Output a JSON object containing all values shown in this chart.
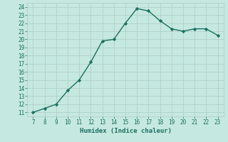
{
  "x": [
    7,
    8,
    9,
    10,
    11,
    12,
    13,
    14,
    15,
    16,
    17,
    18,
    19,
    20,
    21,
    22,
    23
  ],
  "y": [
    11.0,
    11.5,
    12.0,
    13.7,
    15.0,
    17.2,
    19.8,
    20.0,
    22.0,
    23.8,
    23.5,
    22.3,
    21.3,
    21.0,
    21.3,
    21.3,
    20.5
  ],
  "line_color": "#1a7060",
  "marker": "D",
  "marker_size": 2.2,
  "bg_color": "#c5e8e0",
  "grid_color": "#aeccc5",
  "xlabel": "Humidex (Indice chaleur)",
  "xlim_min": 6.5,
  "xlim_max": 23.5,
  "ylim_min": 10.5,
  "ylim_max": 24.5,
  "xticks": [
    7,
    8,
    9,
    10,
    11,
    12,
    13,
    14,
    15,
    16,
    17,
    18,
    19,
    20,
    21,
    22,
    23
  ],
  "yticks": [
    11,
    12,
    13,
    14,
    15,
    16,
    17,
    18,
    19,
    20,
    21,
    22,
    23,
    24
  ],
  "tick_label_color": "#1a7060",
  "xlabel_color": "#1a7060",
  "xlabel_fontsize": 6.5,
  "tick_fontsize": 5.5,
  "line_width": 1.0
}
